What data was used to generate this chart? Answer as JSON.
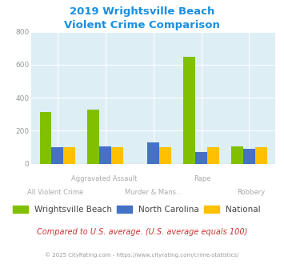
{
  "title_line1": "2019 Wrightsville Beach",
  "title_line2": "Violent Crime Comparison",
  "title_color": "#1a8fe0",
  "wrightsville": [
    315,
    330,
    0,
    648,
    103
  ],
  "north_carolina": [
    100,
    107,
    127,
    70,
    90
  ],
  "national": [
    100,
    100,
    100,
    100,
    100
  ],
  "colors": {
    "wrightsville": "#80c000",
    "north_carolina": "#4472c4",
    "national": "#ffc000"
  },
  "ylim": [
    0,
    800
  ],
  "yticks": [
    0,
    200,
    400,
    600,
    800
  ],
  "plot_bg": "#ddeef5",
  "grid_color": "#ffffff",
  "top_labels": [
    "",
    "Aggravated Assault",
    "",
    "Rape",
    ""
  ],
  "bot_labels": [
    "All Violent Crime",
    "",
    "Murder & Mans...",
    "",
    "Robbery"
  ],
  "label_color": "#aaaaaa",
  "note": "Compared to U.S. average. (U.S. average equals 100)",
  "note_color": "#cc3333",
  "footer": "© 2025 CityRating.com - https://www.cityrating.com/crime-statistics/",
  "footer_color": "#999999",
  "legend_labels": [
    "Wrightsville Beach",
    "North Carolina",
    "National"
  ],
  "legend_text_color": "#444444"
}
